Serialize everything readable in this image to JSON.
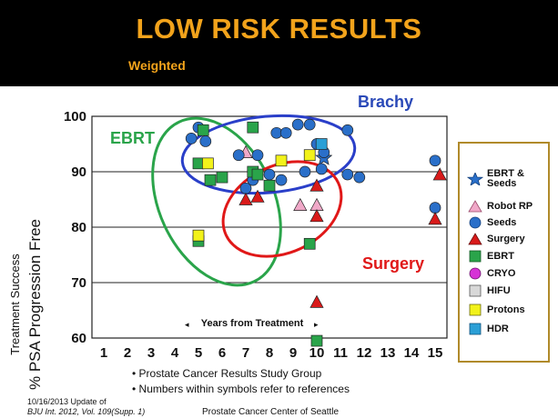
{
  "header": {
    "title": "LOW RISK RESULTS",
    "subtitle": "Weighted"
  },
  "chart_data": {
    "type": "scatter",
    "ylabel_top": "Treatment Success",
    "ylabel_bottom": "% PSA Progression Free",
    "xlabel": "Years from Treatment",
    "xlim": [
      0.5,
      15.5
    ],
    "ylim": [
      60,
      100
    ],
    "xticks": [
      "1",
      "2",
      "3",
      "4",
      "5",
      "6",
      "7",
      "8",
      "9",
      "10",
      "11",
      "12",
      "13",
      "14",
      "15"
    ],
    "yticks": [
      "60",
      "70",
      "80",
      "90",
      "100"
    ],
    "grid": "horizontal",
    "group_labels": [
      {
        "text": "EBRT",
        "color": "#2aa44a"
      },
      {
        "text": "Brachy",
        "color": "#2a49b8"
      },
      {
        "text": "Surgery",
        "color": "#e01818"
      }
    ],
    "series": [
      {
        "name": "EBRT & Seeds",
        "marker": "star",
        "color": "#2a6fc9",
        "points": [
          [
            10.3,
            92.5
          ]
        ]
      },
      {
        "name": "Robot RP",
        "marker": "triangle",
        "color": "#f0a8c8",
        "points": [
          [
            7,
            93.5
          ],
          [
            9.3,
            84
          ],
          [
            10,
            84
          ]
        ]
      },
      {
        "name": "Seeds",
        "marker": "circle",
        "color": "#2a6fc9",
        "points": [
          [
            4.7,
            96
          ],
          [
            5,
            98
          ],
          [
            5.3,
            95.5
          ],
          [
            6.7,
            93
          ],
          [
            7.5,
            93
          ],
          [
            8.3,
            97
          ],
          [
            8.7,
            97
          ],
          [
            9.2,
            98.5
          ],
          [
            9.7,
            98.5
          ],
          [
            10,
            95
          ],
          [
            11.3,
            97.5
          ],
          [
            11.3,
            89.5
          ],
          [
            11.8,
            89
          ],
          [
            10.2,
            90.5
          ],
          [
            9.5,
            90
          ],
          [
            8.5,
            88.5
          ],
          [
            8,
            89.5
          ],
          [
            7.3,
            88.5
          ],
          [
            7,
            87
          ],
          [
            15,
            92
          ],
          [
            15,
            83.5
          ],
          [
            10.3,
            93.5
          ]
        ]
      },
      {
        "name": "Surgery",
        "marker": "triangle",
        "color": "#d91a1a",
        "points": [
          [
            10,
            87.5
          ],
          [
            10,
            82
          ],
          [
            10,
            66.5
          ],
          [
            7,
            85
          ],
          [
            7.5,
            85.5
          ],
          [
            15.2,
            89.5
          ],
          [
            15,
            81.5
          ]
        ]
      },
      {
        "name": "EBRT",
        "marker": "square",
        "color": "#2aa44a",
        "points": [
          [
            5.2,
            97.5
          ],
          [
            7.3,
            98
          ],
          [
            7.3,
            90
          ],
          [
            5,
            91.5
          ],
          [
            5.5,
            88.5
          ],
          [
            6,
            89
          ],
          [
            7.5,
            89.5
          ],
          [
            8,
            87.5
          ],
          [
            5,
            77.5
          ],
          [
            9.7,
            77
          ],
          [
            10,
            59.5
          ]
        ]
      },
      {
        "name": "CRYO",
        "marker": "circle",
        "color": "#d633d6",
        "points": []
      },
      {
        "name": "HIFU",
        "marker": "square",
        "color": "#d8d8d8",
        "points": []
      },
      {
        "name": "Protons",
        "marker": "square",
        "color": "#f2f21a",
        "points": [
          [
            5.4,
            91.5
          ],
          [
            8.5,
            92
          ],
          [
            5,
            78.5
          ],
          [
            9.7,
            93
          ]
        ]
      },
      {
        "name": "HDR",
        "marker": "square",
        "color": "#2a9fd6",
        "points": [
          [
            10.2,
            95
          ]
        ]
      }
    ]
  },
  "legend": {
    "items": [
      {
        "label": "EBRT &\nSeeds",
        "line1": "EBRT &",
        "line2": "Seeds",
        "icon": "star"
      },
      {
        "label": "Robot RP",
        "icon": "triangle-pink"
      },
      {
        "label": "Seeds",
        "icon": "circle-blue"
      },
      {
        "label": "Surgery",
        "icon": "triangle-red"
      },
      {
        "label": "EBRT",
        "icon": "square-green"
      },
      {
        "label": "CRYO",
        "icon": "circle-magenta"
      },
      {
        "label": "HIFU",
        "icon": "square-grey"
      },
      {
        "label": "Protons",
        "icon": "square-yellow"
      },
      {
        "label": "HDR",
        "icon": "square-blue"
      }
    ]
  },
  "notes": {
    "line1": "• Prostate Cancer Results Study Group",
    "line2": "• Numbers within symbols refer to references"
  },
  "footer": {
    "date": "10/16/2013   Update of",
    "journal": "BJU Int. 2012, Vol. 109(Supp. 1)",
    "org": "Prostate Cancer Center of Seattle"
  },
  "colors": {
    "banner": "#000000",
    "title": "#f2a31b",
    "ebrt_ellipse": "#2aa44a",
    "brachy_ellipse": "#2a3fc9",
    "surgery_ellipse": "#e01818",
    "legend_border": "#b08a2a"
  }
}
